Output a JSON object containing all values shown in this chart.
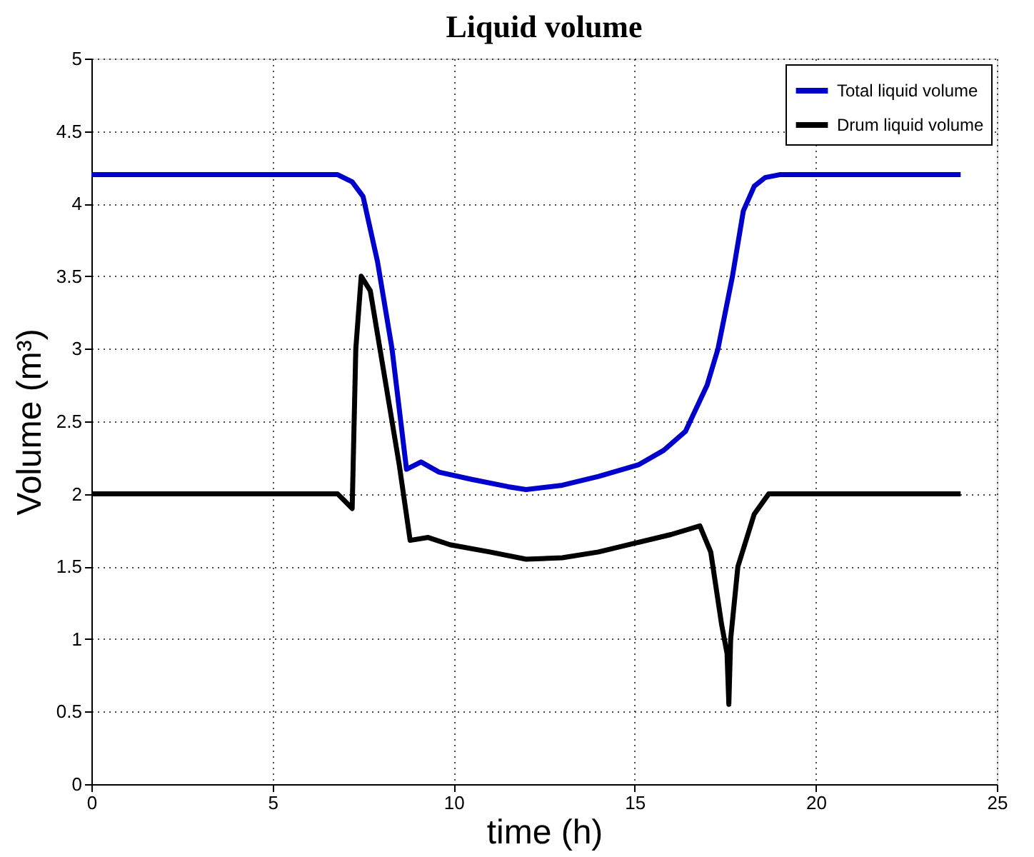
{
  "chart_data": {
    "type": "line",
    "title": "Liquid volume",
    "xlabel": "time (h)",
    "ylabel": "Volume (m³)",
    "xlim": [
      0,
      25
    ],
    "xticks": [
      0,
      5,
      10,
      15,
      20,
      25
    ],
    "ylim": [
      0,
      5
    ],
    "yticks": [
      0,
      0.5,
      1,
      1.5,
      2,
      2.5,
      3,
      3.5,
      4,
      4.5,
      5
    ],
    "grid": true,
    "legend": "top right",
    "line_style": "solid",
    "series": [
      {
        "name": "Total liquid volume",
        "color": "#0000cc",
        "x": [
          0,
          3,
          6.8,
          7.2,
          7.5,
          7.9,
          8.3,
          8.7,
          9.1,
          9.6,
          10.5,
          11.5,
          12,
          13,
          14,
          15.1,
          15.8,
          16.4,
          17,
          17.3,
          17.7,
          18,
          18.3,
          18.6,
          19,
          20,
          22,
          24
        ],
        "values": [
          4.2,
          4.2,
          4.2,
          4.15,
          4.05,
          3.6,
          3.0,
          2.17,
          2.22,
          2.15,
          2.1,
          2.05,
          2.03,
          2.06,
          2.12,
          2.2,
          2.3,
          2.43,
          2.75,
          3.0,
          3.5,
          3.95,
          4.12,
          4.18,
          4.2,
          4.2,
          4.2,
          4.2
        ]
      },
      {
        "name": "Drum liquid volume",
        "color": "#000000",
        "x": [
          0,
          3,
          6.8,
          7.0,
          7.2,
          7.3,
          7.45,
          7.7,
          8.1,
          8.5,
          8.8,
          9.3,
          9.9,
          11,
          12,
          13,
          14,
          15,
          16,
          16.8,
          17.1,
          17.4,
          17.55,
          17.6,
          17.65,
          17.85,
          18.3,
          18.7,
          20,
          22,
          24
        ],
        "values": [
          2.0,
          2.0,
          2.0,
          1.95,
          1.9,
          3.0,
          3.5,
          3.4,
          2.8,
          2.2,
          1.68,
          1.7,
          1.65,
          1.6,
          1.55,
          1.56,
          1.6,
          1.66,
          1.72,
          1.78,
          1.6,
          1.1,
          0.9,
          0.55,
          1.0,
          1.5,
          1.86,
          2.0,
          2.0,
          2.0,
          2.0
        ]
      }
    ]
  }
}
